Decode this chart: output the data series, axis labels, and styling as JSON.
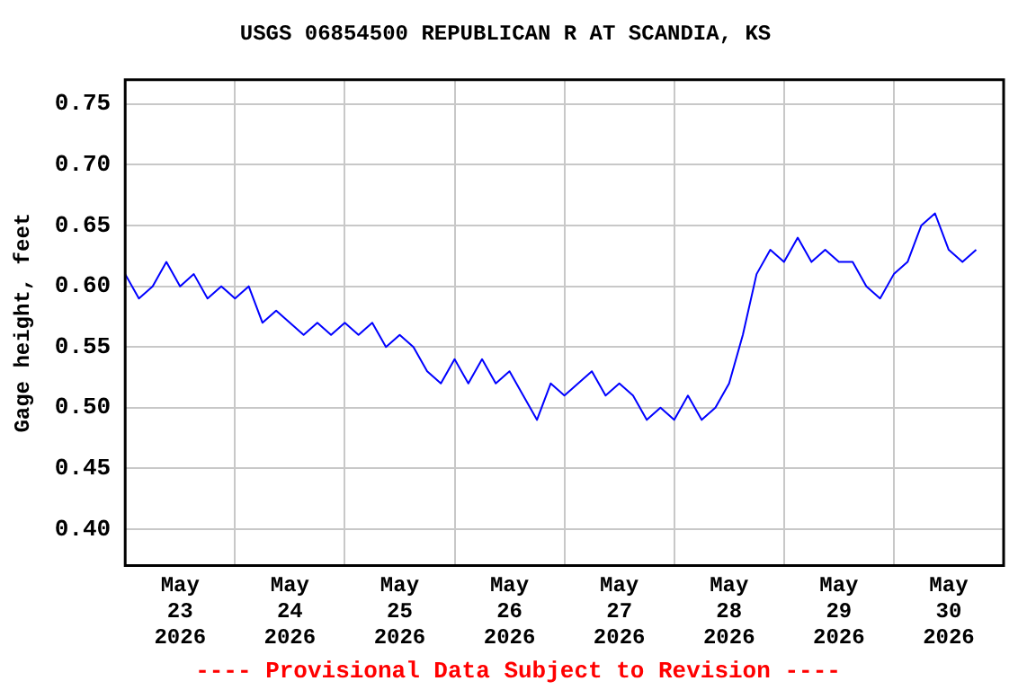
{
  "chart_data": {
    "type": "line",
    "title": "USGS 06854500 REPUBLICAN R AT SCANDIA, KS",
    "ylabel": "Gage height, feet",
    "annotations": [
      "---- Provisional Data Subject to Revision ----"
    ],
    "x": [
      "2026-05-23T00:00",
      "2026-05-23T03:00",
      "2026-05-23T06:00",
      "2026-05-23T09:00",
      "2026-05-23T12:00",
      "2026-05-23T15:00",
      "2026-05-23T18:00",
      "2026-05-23T21:00",
      "2026-05-24T00:00",
      "2026-05-24T03:00",
      "2026-05-24T06:00",
      "2026-05-24T09:00",
      "2026-05-24T12:00",
      "2026-05-24T15:00",
      "2026-05-24T18:00",
      "2026-05-24T21:00",
      "2026-05-25T00:00",
      "2026-05-25T03:00",
      "2026-05-25T06:00",
      "2026-05-25T09:00",
      "2026-05-25T12:00",
      "2026-05-25T15:00",
      "2026-05-25T18:00",
      "2026-05-25T21:00",
      "2026-05-26T00:00",
      "2026-05-26T03:00",
      "2026-05-26T06:00",
      "2026-05-26T09:00",
      "2026-05-26T12:00",
      "2026-05-26T15:00",
      "2026-05-26T18:00",
      "2026-05-26T21:00",
      "2026-05-27T00:00",
      "2026-05-27T03:00",
      "2026-05-27T06:00",
      "2026-05-27T09:00",
      "2026-05-27T12:00",
      "2026-05-27T15:00",
      "2026-05-27T18:00",
      "2026-05-27T21:00",
      "2026-05-28T00:00",
      "2026-05-28T03:00",
      "2026-05-28T06:00",
      "2026-05-28T09:00",
      "2026-05-28T12:00",
      "2026-05-28T15:00",
      "2026-05-28T18:00",
      "2026-05-28T21:00",
      "2026-05-29T00:00",
      "2026-05-29T03:00",
      "2026-05-29T06:00",
      "2026-05-29T09:00",
      "2026-05-29T12:00",
      "2026-05-29T15:00",
      "2026-05-29T18:00",
      "2026-05-29T21:00",
      "2026-05-30T00:00",
      "2026-05-30T03:00",
      "2026-05-30T06:00",
      "2026-05-30T09:00",
      "2026-05-30T12:00",
      "2026-05-30T15:00",
      "2026-05-30T18:00"
    ],
    "series": [
      {
        "color": "#0000ff",
        "values": [
          0.61,
          0.59,
          0.6,
          0.62,
          0.6,
          0.61,
          0.59,
          0.6,
          0.59,
          0.6,
          0.57,
          0.58,
          0.57,
          0.56,
          0.57,
          0.56,
          0.57,
          0.56,
          0.57,
          0.55,
          0.56,
          0.55,
          0.53,
          0.52,
          0.54,
          0.52,
          0.54,
          0.52,
          0.53,
          0.51,
          0.49,
          0.52,
          0.51,
          0.52,
          0.53,
          0.51,
          0.52,
          0.51,
          0.49,
          0.5,
          0.49,
          0.51,
          0.49,
          0.5,
          0.52,
          0.56,
          0.61,
          0.63,
          0.62,
          0.64,
          0.62,
          0.63,
          0.62,
          0.62,
          0.6,
          0.59,
          0.61,
          0.62,
          0.65,
          0.66,
          0.63,
          0.62,
          0.63
        ]
      }
    ],
    "xlim": [
      "2026-05-23T00:00",
      "2026-05-31T00:00"
    ],
    "xticks": [
      {
        "value": "2026-05-23T12:00",
        "label": "May\n23\n2026"
      },
      {
        "value": "2026-05-24T00:00",
        "label": null
      },
      {
        "value": "2026-05-24T12:00",
        "label": "May\n24\n2026"
      },
      {
        "value": "2026-05-25T00:00",
        "label": null
      },
      {
        "value": "2026-05-25T12:00",
        "label": "May\n25\n2026"
      },
      {
        "value": "2026-05-26T00:00",
        "label": null
      },
      {
        "value": "2026-05-26T12:00",
        "label": "May\n26\n2026"
      },
      {
        "value": "2026-05-27T00:00",
        "label": null
      },
      {
        "value": "2026-05-27T12:00",
        "label": "May\n27\n2026"
      },
      {
        "value": "2026-05-28T00:00",
        "label": null
      },
      {
        "value": "2026-05-28T12:00",
        "label": "May\n28\n2026"
      },
      {
        "value": "2026-05-29T00:00",
        "label": null
      },
      {
        "value": "2026-05-29T12:00",
        "label": "May\n29\n2026"
      },
      {
        "value": "2026-05-30T00:00",
        "label": null
      },
      {
        "value": "2026-05-30T12:00",
        "label": "May\n30\n2026"
      }
    ],
    "ylim": [
      0.37,
      0.77
    ],
    "yticks": [
      {
        "value": 0.4,
        "label": "0.40"
      },
      {
        "value": 0.45,
        "label": "0.45"
      },
      {
        "value": 0.5,
        "label": "0.50"
      },
      {
        "value": 0.55,
        "label": "0.55"
      },
      {
        "value": 0.6,
        "label": "0.60"
      },
      {
        "value": 0.65,
        "label": "0.65"
      },
      {
        "value": 0.7,
        "label": "0.70"
      },
      {
        "value": 0.75,
        "label": "0.75"
      }
    ],
    "grid": true
  }
}
